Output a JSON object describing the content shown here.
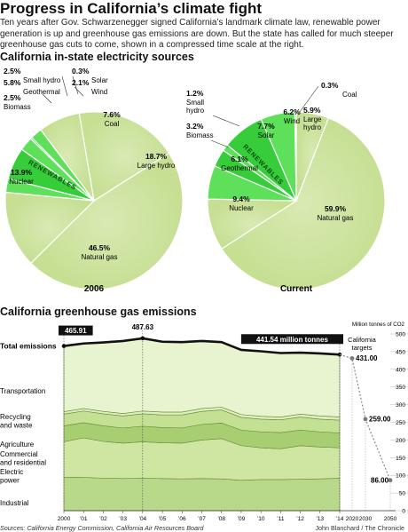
{
  "header": {
    "title": "Progress in California’s climate fight",
    "intro": "Ten years after Gov. Schwarzenegger signed California’s landmark climate law, renewable power generation is up and greenhouse gas emissions are down. But the state has called for much steeper greenhouse gas cuts to come, shown in a compressed time scale at the right."
  },
  "section1_title": "California in-state electricity sources",
  "section2_title": "California greenhouse gas emissions",
  "footer": {
    "sources": "Sources: California Energy Commission, California Air Resources Board",
    "credit": "John Blanchard / The Chronicle"
  },
  "colors": {
    "renewables": "#36cc3a",
    "renewables_light": "#5fe05a",
    "pie_fill": "#d9eab4",
    "pie_fill_dark": "#c6df93",
    "total_line": "#111111",
    "target_line": "#888888"
  },
  "chart_data": [
    {
      "type": "pie",
      "title": "2006",
      "renewables_label": "RENEWABLES",
      "slices": [
        {
          "label": "Coal",
          "value": 7.6,
          "display": "7.6%"
        },
        {
          "label": "Large hydro",
          "value": 18.7,
          "display": "18.7%"
        },
        {
          "label": "Natural gas",
          "value": 46.5,
          "display": "46.5%"
        },
        {
          "label": "Nuclear",
          "value": 13.9,
          "display": "13.9%"
        },
        {
          "label": "Biomass",
          "value": 2.5,
          "display": "2.5%",
          "renewable": true
        },
        {
          "label": "Geothermal",
          "value": 5.8,
          "display": "5.8%",
          "renewable": true
        },
        {
          "label": "Small hydro",
          "value": 2.5,
          "display": "2.5%",
          "renewable": true
        },
        {
          "label": "Solar",
          "value": 0.3,
          "display": "0.3%",
          "renewable": true
        },
        {
          "label": "Wind",
          "value": 2.1,
          "display": "2.1%",
          "renewable": true
        }
      ]
    },
    {
      "type": "pie",
      "title": "Current",
      "renewables_label": "RENEWABLES",
      "slices": [
        {
          "label": "Coal",
          "value": 0.3,
          "display": "0.3%"
        },
        {
          "label": "Large hydro",
          "value": 5.9,
          "display": "5.9%"
        },
        {
          "label": "Natural gas",
          "value": 59.9,
          "display": "59.9%"
        },
        {
          "label": "Nuclear",
          "value": 9.4,
          "display": "9.4%"
        },
        {
          "label": "Geothermal",
          "value": 6.1,
          "display": "6.1%",
          "renewable": true
        },
        {
          "label": "Biomass",
          "value": 3.2,
          "display": "3.2%",
          "renewable": true
        },
        {
          "label": "Small hydro",
          "value": 1.2,
          "display": "1.2%",
          "renewable": true
        },
        {
          "label": "Solar",
          "value": 7.7,
          "display": "7.7%",
          "renewable": true
        },
        {
          "label": "Wind",
          "value": 6.2,
          "display": "6.2%",
          "renewable": true
        }
      ]
    },
    {
      "type": "area",
      "title": "California greenhouse gas emissions",
      "ylabel": "Million tonnes of CO2",
      "ylim": [
        0,
        500
      ],
      "yticks": [
        0,
        50,
        100,
        150,
        200,
        250,
        300,
        350,
        400,
        450,
        500
      ],
      "x": [
        "2000",
        "’01",
        "’02",
        "’03",
        "’04",
        "’05",
        "’06",
        "’07",
        "’08",
        "’09",
        "’10",
        "’11",
        "’12",
        "’13",
        "’14"
      ],
      "total": [
        465.91,
        473,
        476,
        480,
        487.63,
        478,
        477,
        480,
        477,
        455,
        451,
        446,
        447,
        445,
        441.54
      ],
      "series": [
        {
          "name": "Industrial",
          "values": [
            95,
            94,
            92,
            91,
            92,
            91,
            90,
            91,
            90,
            86,
            88,
            88,
            89,
            90,
            92
          ]
        },
        {
          "name": "Electric power",
          "values": [
            100,
            112,
            104,
            100,
            103,
            101,
            101,
            109,
            114,
            98,
            90,
            87,
            95,
            90,
            86
          ]
        },
        {
          "name": "Commercial and residential",
          "values": [
            45,
            43,
            44,
            43,
            44,
            43,
            43,
            44,
            44,
            44,
            45,
            46,
            44,
            43,
            42
          ]
        },
        {
          "name": "Agriculture",
          "values": [
            33,
            33,
            34,
            34,
            35,
            36,
            37,
            37,
            37,
            36,
            36,
            36,
            37,
            36,
            36
          ]
        },
        {
          "name": "Recycling and waste",
          "values": [
            7,
            7,
            7,
            7,
            8,
            8,
            8,
            8,
            8,
            8,
            8,
            8,
            8,
            9,
            9
          ]
        },
        {
          "name": "Transportation",
          "values": [
            186,
            184,
            195,
            205,
            206,
            199,
            198,
            191,
            184,
            183,
            184,
            181,
            174,
            177,
            176
          ]
        }
      ],
      "callouts": [
        {
          "x": "2000",
          "value": 465.91,
          "text": "465.91"
        },
        {
          "x": "’04",
          "value": 487.63,
          "text": "487.63"
        },
        {
          "x": "’14",
          "value": 441.54,
          "text": "441.54 million tonnes"
        }
      ],
      "total_label": "Total emissions",
      "targets": {
        "label": "California targets",
        "x": [
          "’14",
          "2020",
          "2030",
          "2050"
        ],
        "values": [
          441.54,
          431.0,
          259.0,
          86.0
        ],
        "labels": [
          "",
          "431.00",
          "259.00",
          "86.00"
        ]
      }
    }
  ]
}
